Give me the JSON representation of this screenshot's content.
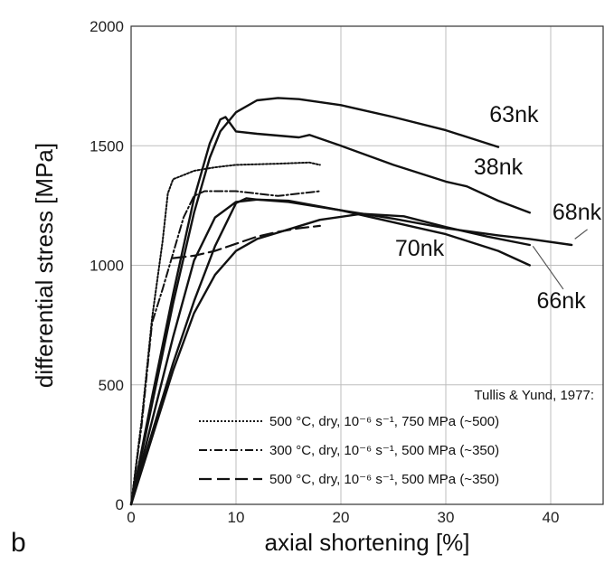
{
  "chart_data": {
    "type": "line",
    "panel_label": "b",
    "xlabel": "axial shortening [%]",
    "ylabel": "differential stress [MPa]",
    "xlim": [
      0,
      45
    ],
    "ylim": [
      0,
      2000
    ],
    "xticks": [
      0,
      10,
      20,
      30,
      40
    ],
    "yticks": [
      0,
      500,
      1000,
      1500,
      2000
    ],
    "grid": true,
    "series": [
      {
        "name": "63nk",
        "style": "solid",
        "x": [
          0,
          2,
          4,
          6,
          7.5,
          8.5,
          10,
          12,
          14,
          16,
          20,
          25,
          30,
          35
        ],
        "y": [
          0,
          420,
          840,
          1220,
          1450,
          1560,
          1640,
          1690,
          1700,
          1695,
          1670,
          1620,
          1565,
          1495
        ]
      },
      {
        "name": "38nk",
        "style": "solid",
        "x": [
          0,
          2,
          4,
          6,
          7.5,
          8.5,
          9,
          10,
          12,
          16,
          17,
          20,
          25,
          30,
          32,
          35,
          38
        ],
        "y": [
          0,
          450,
          880,
          1280,
          1510,
          1610,
          1620,
          1560,
          1550,
          1535,
          1545,
          1500,
          1420,
          1350,
          1330,
          1270,
          1220
        ]
      },
      {
        "name": "68nk",
        "style": "solid",
        "x": [
          0,
          2,
          4,
          6,
          8,
          10,
          12,
          15,
          20,
          25,
          30,
          35,
          38,
          42
        ],
        "y": [
          0,
          350,
          700,
          1020,
          1200,
          1265,
          1275,
          1265,
          1230,
          1195,
          1155,
          1125,
          1110,
          1085
        ]
      },
      {
        "name": "70nk",
        "style": "solid",
        "x": [
          0,
          2,
          4,
          6,
          8,
          10,
          11,
          12,
          15,
          20,
          25,
          30,
          35,
          38
        ],
        "y": [
          0,
          300,
          590,
          850,
          1080,
          1260,
          1280,
          1275,
          1270,
          1230,
          1180,
          1130,
          1060,
          1000
        ]
      },
      {
        "name": "66nk",
        "style": "solid",
        "x": [
          0,
          2,
          4,
          6,
          8,
          10,
          12,
          15,
          18,
          22,
          26,
          30,
          34,
          38
        ],
        "y": [
          0,
          280,
          560,
          800,
          960,
          1060,
          1110,
          1150,
          1190,
          1215,
          1205,
          1160,
          1120,
          1085
        ]
      },
      {
        "name": "500 °C, dry, 10⁻⁶ s⁻¹, 750 MPa (~500)",
        "style": "dotted",
        "x": [
          0,
          1,
          2,
          3,
          3.5,
          4,
          6,
          8,
          10,
          14,
          17,
          18
        ],
        "y": [
          0,
          350,
          780,
          1100,
          1300,
          1360,
          1395,
          1410,
          1420,
          1425,
          1430,
          1420
        ]
      },
      {
        "name": "300 °C, dry, 10⁻⁶ s⁻¹, 500 MPa (~350)",
        "style": "dashdot",
        "x": [
          0,
          1,
          2,
          3,
          4,
          5,
          6,
          7,
          10,
          14,
          18
        ],
        "y": [
          0,
          330,
          760,
          900,
          1050,
          1200,
          1290,
          1310,
          1310,
          1290,
          1310
        ]
      },
      {
        "name": "500 °C, dry, 10⁻⁶ s⁻¹, 500 MPa (~350)",
        "style": "longdash",
        "x": [
          4,
          6,
          8,
          10,
          12,
          14,
          16,
          18
        ],
        "y": [
          1030,
          1040,
          1060,
          1090,
          1120,
          1140,
          1155,
          1165
        ]
      }
    ],
    "curve_labels": [
      {
        "text": "63nk",
        "x": 36.5,
        "y": 1600
      },
      {
        "text": "38nk",
        "x": 35.0,
        "y": 1380
      },
      {
        "text": "68nk",
        "x": 42.5,
        "y": 1190
      },
      {
        "text": "70nk",
        "x": 27.5,
        "y": 1040
      },
      {
        "text": "66nk",
        "x": 41.0,
        "y": 820
      }
    ],
    "legend": {
      "title": "Tullis & Yund, 1977:",
      "entries": [
        {
          "style": "dotted",
          "text": "500 °C, dry, 10⁻⁶ s⁻¹, 750 MPa (~500)"
        },
        {
          "style": "dashdot",
          "text": "300 °C, dry, 10⁻⁶ s⁻¹, 500 MPa (~350)"
        },
        {
          "style": "longdash",
          "text": "500 °C, dry, 10⁻⁶ s⁻¹, 500 MPa (~350)"
        }
      ]
    }
  }
}
